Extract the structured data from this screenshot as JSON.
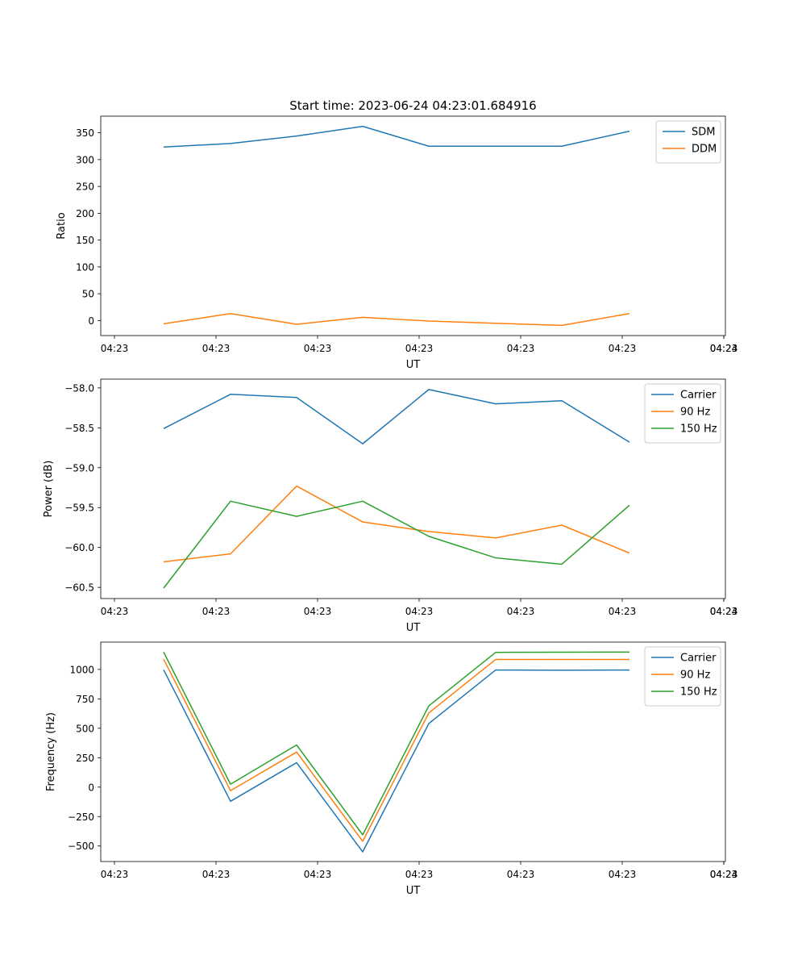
{
  "figure_title": "Start time: 2023-06-24 04:23:01.684916",
  "chart_data": [
    {
      "type": "line",
      "title": "Start time: 2023-06-24 04:23:01.684916",
      "xlabel": "UT",
      "ylabel": "Ratio",
      "x_tick_labels": [
        "04:23",
        "04:23",
        "04:23",
        "04:23",
        "04:23",
        "04:23",
        "04:23",
        "04:24"
      ],
      "y_ticks": [
        0,
        50,
        100,
        150,
        200,
        250,
        300,
        350
      ],
      "ylim": [
        -28,
        381
      ],
      "legend": "top-right",
      "series": [
        {
          "name": "SDM",
          "color": "#1f77b4",
          "values": [
            323.5,
            330,
            344,
            362,
            325,
            325,
            325,
            353
          ]
        },
        {
          "name": "DDM",
          "color": "#ff7f0e",
          "values": [
            -6,
            13,
            -7,
            6,
            -1,
            -5,
            -9,
            13
          ]
        }
      ]
    },
    {
      "type": "line",
      "xlabel": "UT",
      "ylabel": "Power (dB)",
      "x_tick_labels": [
        "04:23",
        "04:23",
        "04:23",
        "04:23",
        "04:23",
        "04:23",
        "04:23",
        "04:24"
      ],
      "y_ticks": [
        -58.0,
        -58.5,
        -59.0,
        -59.5,
        -60.0,
        -60.5
      ],
      "y_tick_labels": [
        "−58.0",
        "−58.5",
        "−59.0",
        "−59.5",
        "−60.0",
        "−60.5"
      ],
      "ylim": [
        -60.64,
        -57.89
      ],
      "legend": "top-right",
      "series": [
        {
          "name": "Carrier",
          "color": "#1f77b4",
          "values": [
            -58.51,
            -58.08,
            -58.12,
            -58.7,
            -58.02,
            -58.2,
            -58.16,
            -58.68
          ]
        },
        {
          "name": "90 Hz",
          "color": "#ff7f0e",
          "values": [
            -60.18,
            -60.08,
            -59.23,
            -59.68,
            -59.8,
            -59.88,
            -59.72,
            -60.07
          ]
        },
        {
          "name": "150 Hz",
          "color": "#2ca02c",
          "values": [
            -60.51,
            -59.42,
            -59.61,
            -59.42,
            -59.86,
            -60.13,
            -60.21,
            -59.47
          ]
        }
      ]
    },
    {
      "type": "line",
      "xlabel": "UT",
      "ylabel": "Frequency (Hz)",
      "x_tick_labels": [
        "04:23",
        "04:23",
        "04:23",
        "04:23",
        "04:23",
        "04:23",
        "04:23",
        "04:24"
      ],
      "y_ticks": [
        1000,
        750,
        500,
        250,
        0,
        -250,
        -500
      ],
      "y_tick_labels": [
        "1000",
        "750",
        "500",
        "250",
        "0",
        "−250",
        "−500"
      ],
      "ylim": [
        -632,
        1232
      ],
      "legend": "top-right",
      "series": [
        {
          "name": "Carrier",
          "color": "#1f77b4",
          "values": [
            997,
            -120,
            208,
            -550,
            540,
            995,
            993,
            995
          ]
        },
        {
          "name": "90 Hz",
          "color": "#ff7f0e",
          "values": [
            1087,
            -30,
            298,
            -460,
            630,
            1085,
            1085,
            1085
          ]
        },
        {
          "name": "150 Hz",
          "color": "#2ca02c",
          "values": [
            1147,
            25,
            358,
            -405,
            690,
            1145,
            1146,
            1147
          ]
        }
      ]
    }
  ]
}
